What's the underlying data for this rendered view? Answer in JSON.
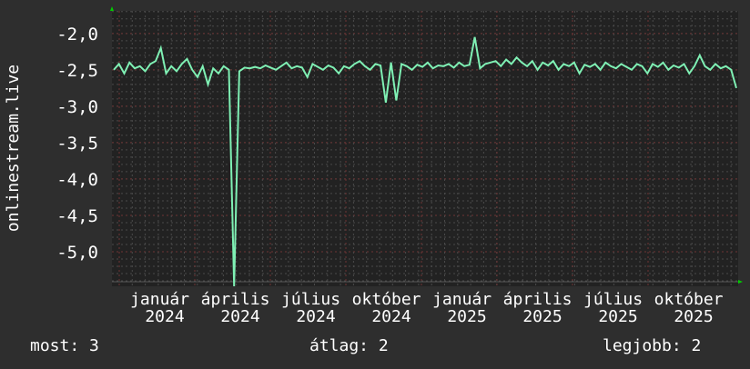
{
  "chart_data": {
    "type": "line",
    "ylabel": "onlinestream.live",
    "ylim": [
      -5.475,
      -1.69
    ],
    "yticks": [
      -2.0,
      -2.5,
      -3.0,
      -3.5,
      -4.0,
      -4.5,
      -5.0
    ],
    "ytick_labels": [
      "-2,0",
      "-2,5",
      "-3,0",
      "-3,5",
      "-4,0",
      "-4,5",
      "-5,0"
    ],
    "xtick_labels": [
      "január 2024",
      "április 2024",
      "július 2024",
      "október 2024",
      "január 2025",
      "április 2025",
      "július 2025",
      "október 2025"
    ],
    "grid": true,
    "colors": {
      "line": "#7ff0b4",
      "background": "#2e2e2e",
      "plot": "#222222",
      "grid": "#4a4a4a",
      "major_grid": "#6e3434",
      "arrow": "#00cc00"
    },
    "values": [
      -2.5,
      -2.42,
      -2.55,
      -2.4,
      -2.48,
      -2.45,
      -2.52,
      -2.42,
      -2.38,
      -2.2,
      -2.55,
      -2.45,
      -2.52,
      -2.42,
      -2.35,
      -2.5,
      -2.6,
      -2.45,
      -2.7,
      -2.48,
      -2.55,
      -2.45,
      -2.5,
      -5.5,
      -2.52,
      -2.47,
      -2.48,
      -2.46,
      -2.48,
      -2.44,
      -2.47,
      -2.5,
      -2.45,
      -2.4,
      -2.48,
      -2.45,
      -2.47,
      -2.6,
      -2.42,
      -2.46,
      -2.5,
      -2.44,
      -2.47,
      -2.55,
      -2.45,
      -2.48,
      -2.42,
      -2.38,
      -2.45,
      -2.5,
      -2.42,
      -2.44,
      -2.95,
      -2.4,
      -2.92,
      -2.42,
      -2.45,
      -2.5,
      -2.43,
      -2.46,
      -2.4,
      -2.48,
      -2.44,
      -2.45,
      -2.42,
      -2.47,
      -2.4,
      -2.45,
      -2.43,
      -2.05,
      -2.48,
      -2.42,
      -2.4,
      -2.38,
      -2.45,
      -2.36,
      -2.42,
      -2.33,
      -2.4,
      -2.45,
      -2.38,
      -2.5,
      -2.4,
      -2.44,
      -2.38,
      -2.5,
      -2.42,
      -2.45,
      -2.4,
      -2.55,
      -2.43,
      -2.46,
      -2.42,
      -2.5,
      -2.4,
      -2.45,
      -2.48,
      -2.42,
      -2.46,
      -2.5,
      -2.42,
      -2.45,
      -2.55,
      -2.42,
      -2.46,
      -2.4,
      -2.5,
      -2.44,
      -2.47,
      -2.42,
      -2.55,
      -2.45,
      -2.3,
      -2.45,
      -2.5,
      -2.42,
      -2.48,
      -2.45,
      -2.5,
      -2.75
    ]
  },
  "legend": {
    "current": "most: 3",
    "average": "átlag: 2",
    "best": "legjobb: 2"
  }
}
